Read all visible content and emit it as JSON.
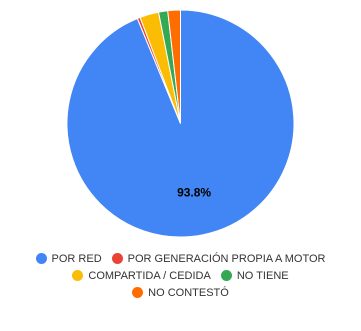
{
  "chart_data": {
    "type": "pie",
    "title": "",
    "start_angle_deg": 0,
    "slices": [
      {
        "label": "POR RED",
        "value": 93.8,
        "color": "#4285f4",
        "show_label": true
      },
      {
        "label": "POR GENERACIÓN PROPIA A MOTOR",
        "value": 0.4,
        "color": "#ea4335",
        "show_label": false
      },
      {
        "label": "COMPARTIDA / CEDIDA",
        "value": 2.7,
        "color": "#fbbc04",
        "show_label": false
      },
      {
        "label": "NO TIENE",
        "value": 1.3,
        "color": "#34a853",
        "show_label": false
      },
      {
        "label": "NO CONTESTÓ",
        "value": 1.8,
        "color": "#ff6d01",
        "show_label": false
      }
    ],
    "value_labels": [
      "93.8%"
    ],
    "legend": {
      "position": "bottom",
      "rows": [
        [
          0,
          1
        ],
        [
          2,
          3
        ],
        [
          4
        ]
      ]
    }
  }
}
